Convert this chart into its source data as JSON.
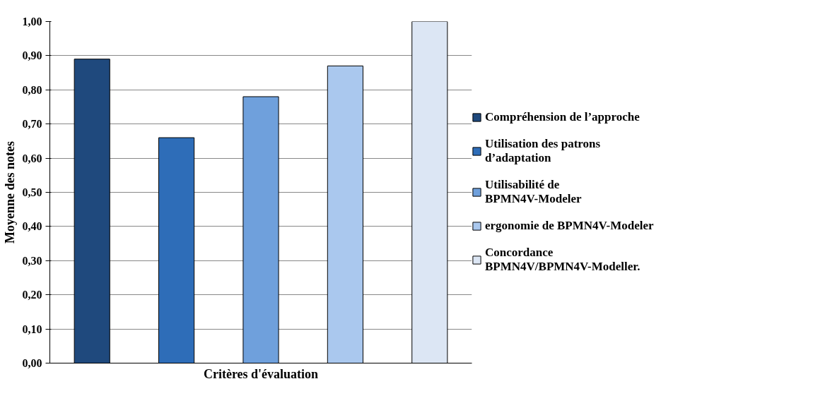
{
  "chart_data": {
    "type": "bar",
    "xlabel": "Critères d'évaluation",
    "ylabel": "Moyenne des notes",
    "categories": [
      null
    ],
    "series": [
      {
        "name": "Compréhension de l’approche",
        "color": "#1f497d",
        "values": [
          0.89
        ]
      },
      {
        "name": "Utilisation des patrons d’adaptation",
        "color": "#2e6db8",
        "values": [
          0.66
        ]
      },
      {
        "name": "Utilisabilité de BPMN4V-Modeler",
        "color": "#6fa0dc",
        "values": [
          0.78
        ]
      },
      {
        "name": "ergonomie de BPMN4V-Modeler",
        "color": "#aac8ee",
        "values": [
          0.87
        ]
      },
      {
        "name": "Concordance BPMN4V/BPMN4V-Modeller.",
        "color": "#dce6f4",
        "values": [
          1.0
        ]
      }
    ],
    "ylim": [
      0,
      1
    ],
    "yticks": [
      {
        "value": 0,
        "label": "0,00"
      },
      {
        "value": 0.1,
        "label": "0,10"
      },
      {
        "value": 0.2,
        "label": "0,20"
      },
      {
        "value": 0.3,
        "label": "0,30"
      },
      {
        "value": 0.4,
        "label": "0,40"
      },
      {
        "value": 0.5,
        "label": "0,50"
      },
      {
        "value": 0.6,
        "label": "0,60"
      },
      {
        "value": 0.7,
        "label": "0,70"
      },
      {
        "value": 0.8,
        "label": "0,80"
      },
      {
        "value": 0.9,
        "label": "0,90"
      },
      {
        "value": 1,
        "label": "1,00"
      }
    ],
    "grid": "y",
    "legend": "right"
  }
}
